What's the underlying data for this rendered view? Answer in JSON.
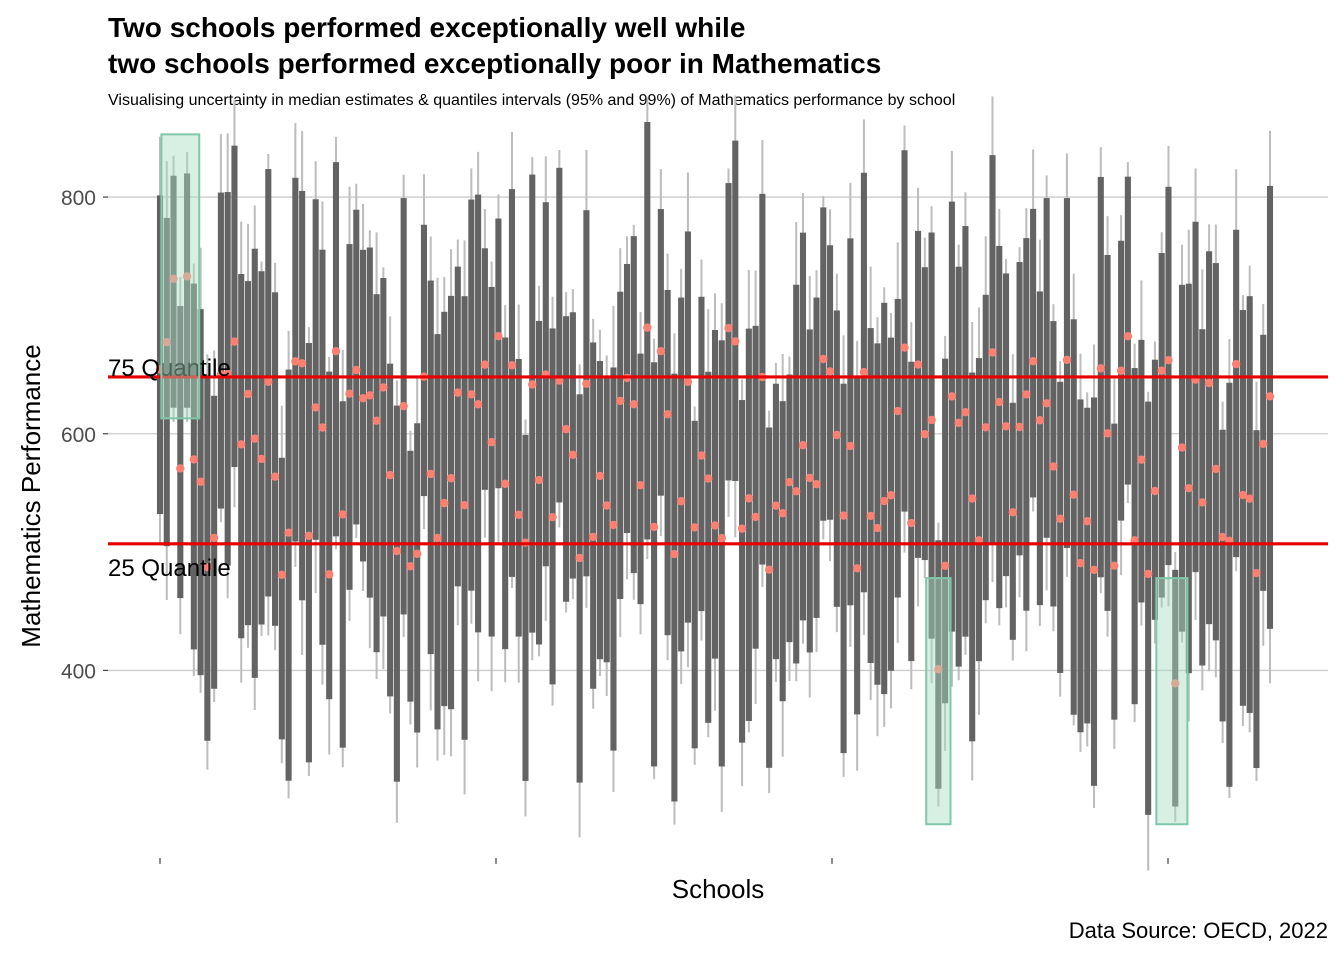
{
  "title_line1": "Two schools performed exceptionally well while",
  "title_line2": "two schools performed exceptionally poor in Mathematics",
  "subtitle": "Visualising uncertainty in median estimates & quantiles intervals (95% and 99%) of Mathematics performance by school",
  "caption": "Data Source: OECD, 2022",
  "chart_data": {
    "type": "interval",
    "xlabel": "Schools",
    "ylabel": "Mathematics Performance",
    "yticks": [
      400,
      600,
      800
    ],
    "ylim": [
      255,
      855
    ],
    "x_tick_count": 4,
    "school_count": 165,
    "grid": "horizontal",
    "reference_lines": [
      {
        "label": "75 Quantile",
        "value": 648
      },
      {
        "label": "25 Quantile",
        "value": 507
      }
    ],
    "highlights": [
      {
        "group": "top",
        "first_school": 2,
        "last_school": 6
      },
      {
        "group": "bottom",
        "first_school": 115,
        "last_school": 117
      },
      {
        "group": "bottom",
        "first_school": 149,
        "last_school": 152
      }
    ],
    "notable_schools": [
      {
        "school": 3,
        "median": 731,
        "q95": [
          622,
          818
        ],
        "q99": [
          610,
          835
        ]
      },
      {
        "school": 5,
        "median": 733,
        "q95": [
          622,
          820
        ],
        "q99": [
          610,
          838
        ]
      },
      {
        "school": 116,
        "median": 401,
        "q95": [
          300,
          510
        ],
        "q99": [
          285,
          525
        ]
      },
      {
        "school": 151,
        "median": 389,
        "q95": [
          285,
          485
        ],
        "q99": [
          272,
          500
        ]
      }
    ],
    "colors": {
      "interval_99": "#bdbdbd",
      "interval_95": "#636363",
      "median": "#fa8072",
      "reference": "#e60000",
      "highlight_fill": "#a8dcc4",
      "highlight_stroke": "#7fc8a9",
      "grid": "#cccccc"
    }
  }
}
